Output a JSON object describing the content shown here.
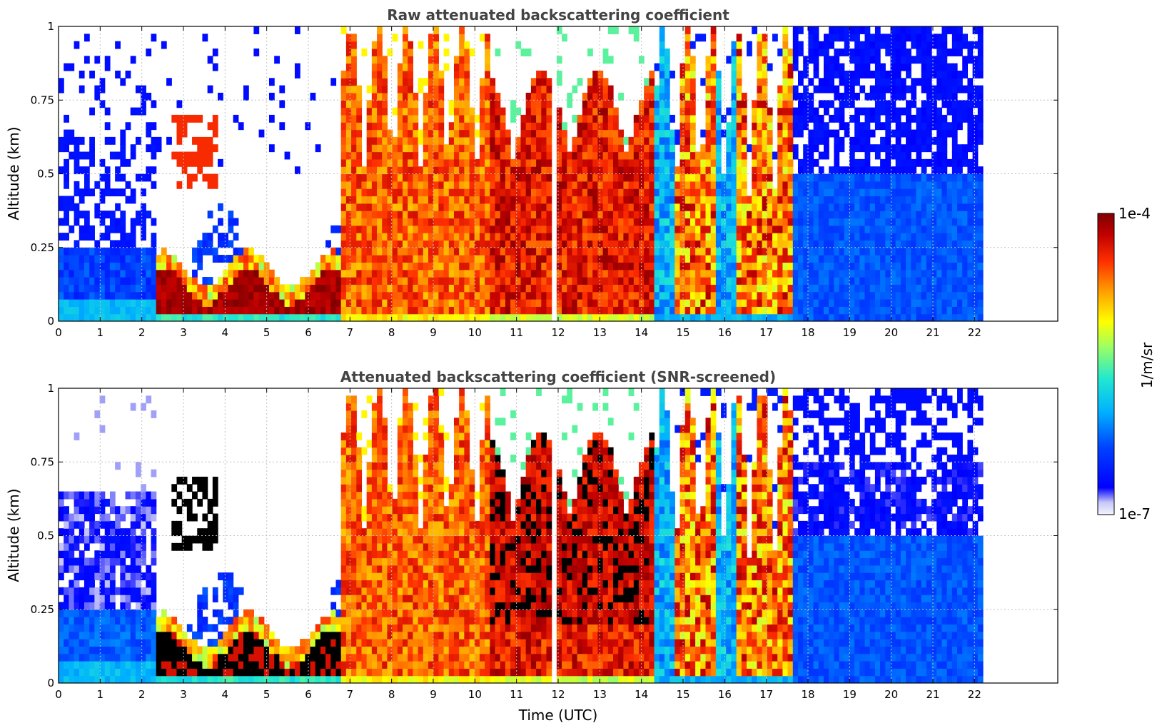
{
  "chart_data": [
    {
      "type": "heatmap",
      "title": "Raw attenuated backscattering coefficient",
      "xlabel": "",
      "ylabel": "Altitude (km)",
      "xlim": [
        0,
        24
      ],
      "ylim": [
        0,
        1
      ],
      "xticks": [
        "0",
        "1",
        "2",
        "3",
        "4",
        "5",
        "6",
        "7",
        "8",
        "9",
        "10",
        "11",
        "12",
        "13",
        "14",
        "15",
        "16",
        "17",
        "18",
        "19",
        "20",
        "21",
        "22"
      ],
      "yticks": [
        "0",
        "0.25",
        "0.5",
        "0.75",
        "1"
      ],
      "data_end_hour": 22.2,
      "grid": true,
      "segments": [
        {
          "start": 0.0,
          "end": 2.4,
          "regime": "clear-noise",
          "top_km": 0.25
        },
        {
          "start": 2.4,
          "end": 6.8,
          "regime": "boundary-layer",
          "top_km": 0.2
        },
        {
          "start": 6.8,
          "end": 10.3,
          "regime": "strong-orange",
          "top_km": 1.0
        },
        {
          "start": 10.3,
          "end": 11.9,
          "regime": "cloud-red",
          "top_km": 0.8
        },
        {
          "start": 11.9,
          "end": 12.0,
          "regime": "gap",
          "top_km": 0
        },
        {
          "start": 12.0,
          "end": 14.3,
          "regime": "cloud-red",
          "top_km": 0.75
        },
        {
          "start": 14.3,
          "end": 17.6,
          "regime": "mixed",
          "top_km": 1.0
        },
        {
          "start": 17.6,
          "end": 22.2,
          "regime": "clear-noise",
          "top_km": 0.5
        }
      ]
    },
    {
      "type": "heatmap",
      "title": "Attenuated backscattering coefficient (SNR-screened)",
      "xlabel": "Time (UTC)",
      "ylabel": "Altitude (km)",
      "xlim": [
        0,
        24
      ],
      "ylim": [
        0,
        1
      ],
      "xticks": [
        "0",
        "1",
        "2",
        "3",
        "4",
        "5",
        "6",
        "7",
        "8",
        "9",
        "10",
        "11",
        "12",
        "13",
        "14",
        "15",
        "16",
        "17",
        "18",
        "19",
        "20",
        "21",
        "22"
      ],
      "yticks": [
        "0",
        "0.25",
        "0.5",
        "0.75",
        "1"
      ],
      "data_end_hour": 22.2,
      "grid": true,
      "segments": [
        {
          "start": 0.0,
          "end": 2.4,
          "regime": "screened-lavender",
          "top_km": 0.7
        },
        {
          "start": 2.4,
          "end": 6.8,
          "regime": "boundary-layer-black",
          "top_km": 0.2
        },
        {
          "start": 6.8,
          "end": 10.3,
          "regime": "strong-orange",
          "top_km": 1.0
        },
        {
          "start": 10.3,
          "end": 11.9,
          "regime": "cloud-black",
          "top_km": 0.85
        },
        {
          "start": 11.9,
          "end": 12.0,
          "regime": "gap",
          "top_km": 0
        },
        {
          "start": 12.0,
          "end": 14.3,
          "regime": "cloud-black",
          "top_km": 0.75
        },
        {
          "start": 14.3,
          "end": 17.6,
          "regime": "mixed",
          "top_km": 1.0
        },
        {
          "start": 17.6,
          "end": 22.2,
          "regime": "screened-blue",
          "top_km": 1.0
        }
      ]
    }
  ],
  "colorbar": {
    "label": "1/m/sr",
    "max_label": "1e-4",
    "min_label": "1e-7",
    "colormap": "jet-with-white-low"
  },
  "colors": {
    "title": "#444444",
    "grid": "#bfbfbf",
    "axis": "#000000"
  }
}
